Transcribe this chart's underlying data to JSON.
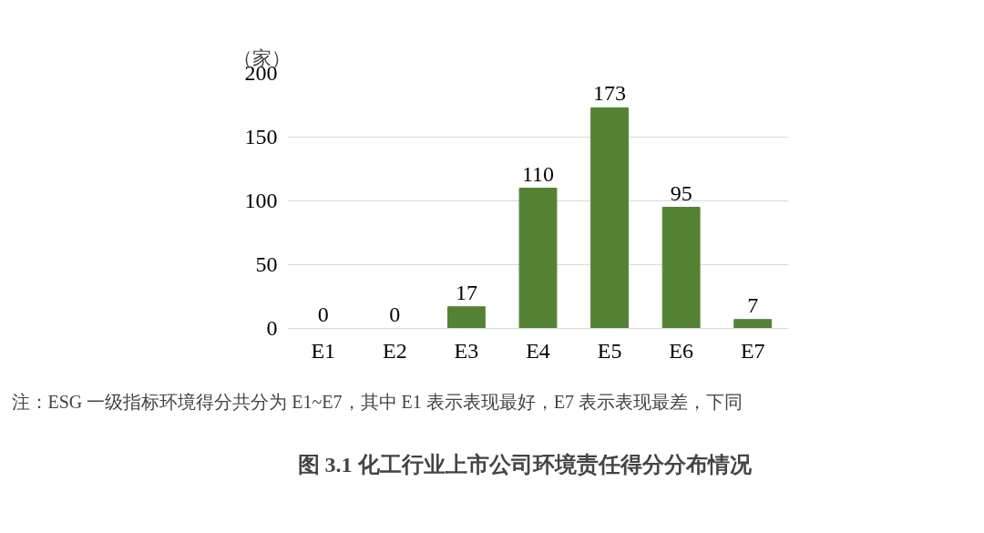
{
  "chart_data": {
    "type": "bar",
    "title": "图 3.1      化工行业上市公司环境责任得分分布情况",
    "ylabel": "（家）",
    "categories": [
      "E1",
      "E2",
      "E3",
      "E4",
      "E5",
      "E6",
      "E7"
    ],
    "values": [
      0,
      0,
      17,
      110,
      173,
      95,
      7
    ],
    "color": "#548235",
    "ylim": [
      0,
      200
    ],
    "yticks": [
      0,
      50,
      100,
      150,
      200
    ],
    "grid": "y",
    "data_labels": true,
    "annotations": [
      "注：ESG 一级指标环境得分共分为 E1~E7，其中 E1 表示表现最好，E7 表示表现最差，下同"
    ]
  }
}
